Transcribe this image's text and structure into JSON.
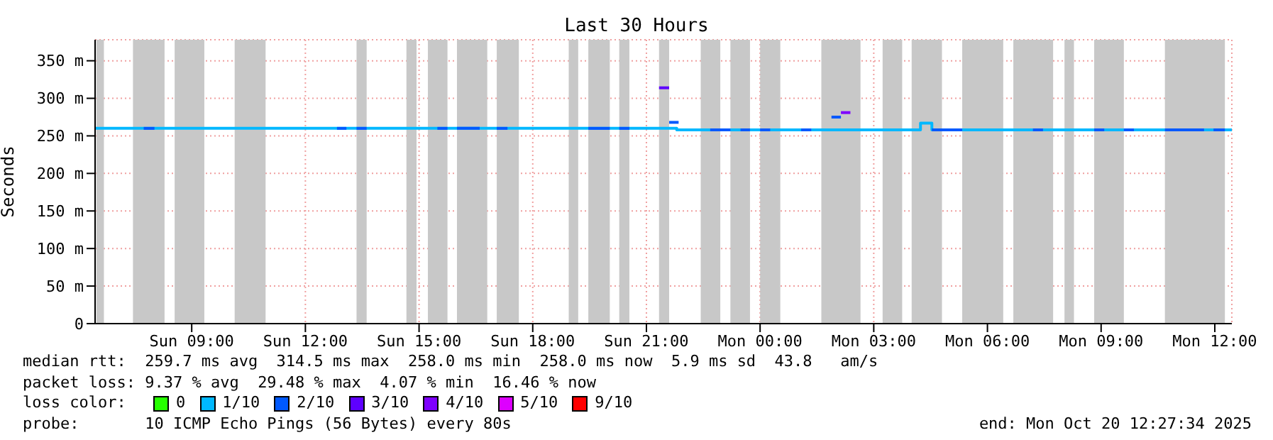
{
  "chart_data": {
    "type": "step",
    "title": "Last 30 Hours",
    "ylabel": "Seconds",
    "legend_title": "loss color:",
    "xlim": [
      "2025-10-19T06:27",
      "2025-10-20T12:27"
    ],
    "xticks": [
      {
        "value": "2025-10-19T09:00",
        "label": "Sun 09:00"
      },
      {
        "value": "2025-10-19T12:00",
        "label": "Sun 12:00"
      },
      {
        "value": "2025-10-19T15:00",
        "label": "Sun 15:00"
      },
      {
        "value": "2025-10-19T18:00",
        "label": "Sun 18:00"
      },
      {
        "value": "2025-10-19T21:00",
        "label": "Sun 21:00"
      },
      {
        "value": "2025-10-20T00:00",
        "label": "Mon 00:00"
      },
      {
        "value": "2025-10-20T03:00",
        "label": "Mon 03:00"
      },
      {
        "value": "2025-10-20T06:00",
        "label": "Mon 06:00"
      },
      {
        "value": "2025-10-20T09:00",
        "label": "Mon 09:00"
      },
      {
        "value": "2025-10-20T12:00",
        "label": "Mon 12:00"
      }
    ],
    "ylim": [
      0,
      378
    ],
    "yticks": [
      0,
      {
        "value": 50,
        "label": "50 m"
      },
      {
        "value": 100,
        "label": "100 m"
      },
      {
        "value": 150,
        "label": "150 m"
      },
      {
        "value": 200,
        "label": "200 m"
      },
      {
        "value": 250,
        "label": "250 m"
      },
      {
        "value": 300,
        "label": "300 m"
      },
      {
        "value": 350,
        "label": "350 m"
      }
    ],
    "grid": true,
    "legend": "bottom",
    "marker": "none",
    "series": [
      {
        "name": "0",
        "color": "#26ff00"
      },
      {
        "name": "1/10",
        "color": "#00b8ff",
        "x": [
          "2025-10-19T06:27",
          "2025-10-19T21:48",
          "2025-10-20T04:14",
          "2025-10-20T04:32",
          "2025-10-20T12:27"
        ],
        "values": [
          260,
          258,
          267,
          258,
          258
        ]
      },
      {
        "name": "2/10",
        "color": "#0059ff",
        "x": [
          "2025-10-19T07:44",
          "2025-10-19T08:01"
        ],
        "values": [
          260,
          260
        ]
      },
      {
        "name": "3/10",
        "color": "#5e00ff",
        "x": [
          "2025-10-19T21:20",
          "2025-10-19T21:36"
        ],
        "values": [
          314,
          314
        ]
      },
      {
        "name": "4/10",
        "color": "#7e00ff",
        "x": [
          "2025-10-20T02:08",
          "2025-10-20T02:23"
        ],
        "values": [
          281,
          281
        ]
      },
      {
        "name": "5/10",
        "color": "#dd00ff"
      },
      {
        "name": "9/10",
        "color": "#ff0000"
      },
      {
        "color": "#0059ff",
        "x": [
          "2025-10-19T12:50",
          "2025-10-19T13:05"
        ],
        "values": [
          260,
          260
        ]
      },
      {
        "color": "#0059ff",
        "x": [
          "2025-10-19T13:21",
          "2025-10-19T13:37"
        ],
        "values": [
          260,
          260
        ]
      },
      {
        "color": "#0059ff",
        "x": [
          "2025-10-19T15:29",
          "2025-10-19T15:45"
        ],
        "values": [
          260,
          260
        ]
      },
      {
        "color": "#0059ff",
        "x": [
          "2025-10-19T16:00",
          "2025-10-19T16:36"
        ],
        "values": [
          260,
          260
        ]
      },
      {
        "color": "#0059ff",
        "x": [
          "2025-10-19T17:03",
          "2025-10-19T17:20"
        ],
        "values": [
          260,
          260
        ]
      },
      {
        "color": "#0059ff",
        "x": [
          "2025-10-19T19:28",
          "2025-10-19T20:02"
        ],
        "values": [
          260,
          260
        ]
      },
      {
        "color": "#0059ff",
        "x": [
          "2025-10-19T20:17",
          "2025-10-19T20:33"
        ],
        "values": [
          260,
          260
        ]
      },
      {
        "color": "#0059ff",
        "x": [
          "2025-10-19T21:36",
          "2025-10-19T21:51"
        ],
        "values": [
          268,
          268
        ]
      },
      {
        "color": "#0059ff",
        "x": [
          "2025-10-19T22:41",
          "2025-10-19T23:13"
        ],
        "values": [
          258,
          258
        ]
      },
      {
        "color": "#0059ff",
        "x": [
          "2025-10-19T23:29",
          "2025-10-19T23:44"
        ],
        "values": [
          258,
          258
        ]
      },
      {
        "color": "#0059ff",
        "x": [
          "2025-10-20T00:00",
          "2025-10-20T00:16"
        ],
        "values": [
          258,
          258
        ]
      },
      {
        "color": "#0059ff",
        "x": [
          "2025-10-20T01:05",
          "2025-10-20T01:21"
        ],
        "values": [
          258,
          258
        ]
      },
      {
        "color": "#0059ff",
        "x": [
          "2025-10-20T01:53",
          "2025-10-20T02:08"
        ],
        "values": [
          275,
          275
        ]
      },
      {
        "color": "#0059ff",
        "x": [
          "2025-10-20T04:32",
          "2025-10-20T05:20"
        ],
        "values": [
          258,
          258
        ]
      },
      {
        "color": "#0059ff",
        "x": [
          "2025-10-20T07:12",
          "2025-10-20T07:28"
        ],
        "values": [
          258,
          258
        ]
      },
      {
        "color": "#0059ff",
        "x": [
          "2025-10-20T08:49",
          "2025-10-20T09:05"
        ],
        "values": [
          258,
          258
        ]
      },
      {
        "color": "#0059ff",
        "x": [
          "2025-10-20T09:36",
          "2025-10-20T09:52"
        ],
        "values": [
          258,
          258
        ]
      },
      {
        "color": "#0059ff",
        "x": [
          "2025-10-20T10:41",
          "2025-10-20T11:43"
        ],
        "values": [
          258,
          258
        ]
      },
      {
        "color": "#0059ff",
        "x": [
          "2025-10-20T11:58",
          "2025-10-20T12:16"
        ],
        "values": [
          258,
          258
        ]
      }
    ],
    "bands": [
      {
        "axis": "x",
        "from": "2025-10-19T06:29",
        "to": "2025-10-19T06:41",
        "color": "#c8c8c8"
      },
      {
        "axis": "x",
        "from": "2025-10-19T07:27",
        "to": "2025-10-19T08:17",
        "color": "#c8c8c8"
      },
      {
        "axis": "x",
        "from": "2025-10-19T08:33",
        "to": "2025-10-19T09:20",
        "color": "#c8c8c8"
      },
      {
        "axis": "x",
        "from": "2025-10-19T10:08",
        "to": "2025-10-19T10:57",
        "color": "#c8c8c8"
      },
      {
        "axis": "x",
        "from": "2025-10-19T13:21",
        "to": "2025-10-19T13:37",
        "color": "#c8c8c8"
      },
      {
        "axis": "x",
        "from": "2025-10-19T14:40",
        "to": "2025-10-19T14:56",
        "color": "#c8c8c8"
      },
      {
        "axis": "x",
        "from": "2025-10-19T15:14",
        "to": "2025-10-19T15:45",
        "color": "#c8c8c8"
      },
      {
        "axis": "x",
        "from": "2025-10-19T16:00",
        "to": "2025-10-19T16:48",
        "color": "#c8c8c8"
      },
      {
        "axis": "x",
        "from": "2025-10-19T17:03",
        "to": "2025-10-19T17:38",
        "color": "#c8c8c8"
      },
      {
        "axis": "x",
        "from": "2025-10-19T18:57",
        "to": "2025-10-19T19:12",
        "color": "#c8c8c8"
      },
      {
        "axis": "x",
        "from": "2025-10-19T19:28",
        "to": "2025-10-19T20:02",
        "color": "#c8c8c8"
      },
      {
        "axis": "x",
        "from": "2025-10-19T20:17",
        "to": "2025-10-19T20:33",
        "color": "#c8c8c8"
      },
      {
        "axis": "x",
        "from": "2025-10-19T21:20",
        "to": "2025-10-19T21:36",
        "color": "#c8c8c8"
      },
      {
        "axis": "x",
        "from": "2025-10-19T22:26",
        "to": "2025-10-19T22:57",
        "color": "#c8c8c8"
      },
      {
        "axis": "x",
        "from": "2025-10-19T23:13",
        "to": "2025-10-19T23:44",
        "color": "#c8c8c8"
      },
      {
        "axis": "x",
        "from": "2025-10-20T00:00",
        "to": "2025-10-20T00:32",
        "color": "#c8c8c8"
      },
      {
        "axis": "x",
        "from": "2025-10-20T01:37",
        "to": "2025-10-20T02:39",
        "color": "#c8c8c8"
      },
      {
        "axis": "x",
        "from": "2025-10-20T03:14",
        "to": "2025-10-20T03:45",
        "color": "#c8c8c8"
      },
      {
        "axis": "x",
        "from": "2025-10-20T04:00",
        "to": "2025-10-20T04:48",
        "color": "#c8c8c8"
      },
      {
        "axis": "x",
        "from": "2025-10-20T05:20",
        "to": "2025-10-20T06:25",
        "color": "#c8c8c8"
      },
      {
        "axis": "x",
        "from": "2025-10-20T06:41",
        "to": "2025-10-20T07:44",
        "color": "#c8c8c8"
      },
      {
        "axis": "x",
        "from": "2025-10-20T08:02",
        "to": "2025-10-20T08:17",
        "color": "#c8c8c8"
      },
      {
        "axis": "x",
        "from": "2025-10-20T08:49",
        "to": "2025-10-20T09:36",
        "color": "#c8c8c8"
      },
      {
        "axis": "x",
        "from": "2025-10-20T10:41",
        "to": "2025-10-20T12:16",
        "color": "#c8c8c8"
      }
    ],
    "annotations": [
      "median rtt:  259.7 ms avg  314.5 ms max  258.0 ms min  258.0 ms now  5.9 ms sd  43.8   am/s",
      "packet loss: 9.37 % avg  29.48 % max  4.07 % min  16.46 % now",
      "probe:       10 ICMP Echo Pings (56 Bytes) every 80s",
      "end: Mon Oct 20 12:27:34 2025"
    ]
  }
}
